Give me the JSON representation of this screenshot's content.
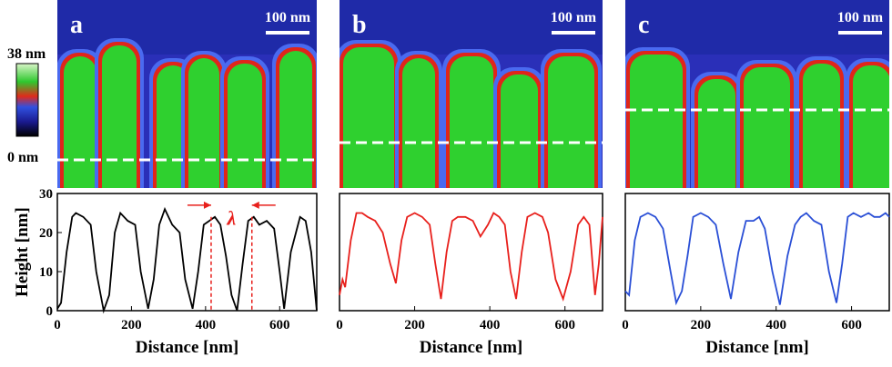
{
  "chart_data": [
    {
      "type": "line",
      "panel_label": "a",
      "scale_bar": "100 nm",
      "colorbar": {
        "labels": [
          "38 nm",
          "0 nm"
        ]
      },
      "xlabel": "Distance [nm]",
      "ylabel": "Height [nm]",
      "xlim": [
        0,
        700
      ],
      "ylim": [
        0,
        30
      ],
      "xticks": [
        0,
        200,
        400,
        600
      ],
      "yticks": [
        0,
        10,
        20,
        30
      ],
      "annotation": {
        "text": "λ",
        "x": [
          415,
          525
        ]
      },
      "series": [
        {
          "color": "#000000",
          "x": [
            0,
            10,
            25,
            40,
            50,
            70,
            90,
            105,
            125,
            140,
            155,
            170,
            190,
            210,
            225,
            245,
            260,
            275,
            290,
            310,
            330,
            345,
            365,
            380,
            395,
            410,
            425,
            440,
            455,
            470,
            485,
            500,
            515,
            530,
            545,
            565,
            585,
            600,
            612,
            630,
            655,
            670,
            685,
            700
          ],
          "values": [
            0.5,
            2,
            15,
            24,
            25,
            24,
            22,
            10,
            0,
            4,
            20,
            25,
            23,
            22,
            10,
            0.5,
            8,
            22,
            26,
            22,
            20,
            8,
            0.5,
            10,
            22,
            23,
            24,
            22,
            14,
            4,
            0,
            12,
            23,
            24,
            22,
            23,
            21,
            10,
            0.5,
            15,
            24,
            23,
            15,
            0
          ]
        }
      ]
    },
    {
      "type": "line",
      "panel_label": "b",
      "scale_bar": "100 nm",
      "xlabel": "Distance [nm]",
      "xlim": [
        0,
        700
      ],
      "ylim": [
        0,
        30
      ],
      "xticks": [
        0,
        200,
        400,
        600
      ],
      "series": [
        {
          "color": "#e8201c",
          "x": [
            0,
            8,
            15,
            30,
            45,
            60,
            75,
            95,
            115,
            135,
            150,
            165,
            180,
            200,
            220,
            240,
            255,
            270,
            285,
            300,
            315,
            335,
            355,
            375,
            395,
            410,
            425,
            440,
            455,
            470,
            485,
            500,
            520,
            540,
            555,
            575,
            595,
            615,
            635,
            650,
            665,
            680,
            690,
            700
          ],
          "values": [
            4,
            8,
            6,
            18,
            25,
            25,
            24,
            23,
            20,
            12,
            7,
            18,
            24,
            25,
            24,
            22,
            12,
            3,
            15,
            23,
            24,
            24,
            23,
            19,
            22,
            25,
            24,
            22,
            10,
            3,
            15,
            24,
            25,
            24,
            20,
            8,
            3,
            10,
            22,
            24,
            22,
            4,
            12,
            24
          ]
        }
      ]
    },
    {
      "type": "line",
      "panel_label": "c",
      "scale_bar": "100 nm",
      "xlabel": "Distance [nm]",
      "xlim": [
        0,
        700
      ],
      "ylim": [
        0,
        30
      ],
      "xticks": [
        0,
        200,
        400,
        600
      ],
      "series": [
        {
          "color": "#2a4fd6",
          "x": [
            0,
            10,
            25,
            40,
            60,
            80,
            100,
            120,
            135,
            150,
            165,
            180,
            200,
            220,
            240,
            260,
            280,
            300,
            320,
            340,
            355,
            370,
            390,
            410,
            430,
            450,
            465,
            480,
            500,
            520,
            540,
            560,
            575,
            590,
            605,
            625,
            645,
            660,
            675,
            690,
            700
          ],
          "values": [
            5,
            4,
            18,
            24,
            25,
            24,
            21,
            10,
            2,
            5,
            14,
            24,
            25,
            24,
            22,
            12,
            3,
            15,
            23,
            23,
            24,
            21,
            10,
            1.5,
            14,
            22,
            24,
            25,
            23,
            22,
            10,
            2,
            12,
            24,
            25,
            24,
            25,
            24,
            24,
            25,
            24
          ]
        }
      ]
    }
  ]
}
